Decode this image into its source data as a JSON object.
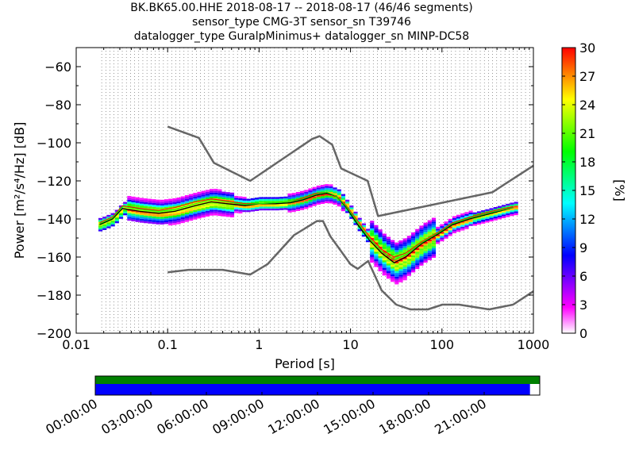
{
  "title": {
    "line1": "BK.BK65.00.HHE   2018-08-17 -- 2018-08-17  (46/46 segments)",
    "line2": "sensor_type CMG-3T sensor_sn T39746",
    "line3": "datalogger_type GuralpMinimus+ datalogger_sn MINP-DC58"
  },
  "chart_data": [
    {
      "type": "heatmap",
      "subtype": "probabilistic-power-spectral-density",
      "xlabel": "Period [s]",
      "ylabel": "Power [m²/s⁴/Hz] [dB]",
      "xscale": "log",
      "xlim": [
        0.01,
        1000
      ],
      "ylim": [
        -200,
        -50
      ],
      "x_ticks": [
        0.01,
        0.1,
        1,
        10,
        100,
        1000
      ],
      "x_tick_labels": [
        "0.01",
        "0.1",
        "1",
        "10",
        "100",
        "1000"
      ],
      "y_ticks": [
        -200,
        -180,
        -160,
        -140,
        -120,
        -100,
        -80,
        -60
      ],
      "y_tick_labels": [
        "−200",
        "−180",
        "−160",
        "−140",
        "−120",
        "−100",
        "−80",
        "−60"
      ],
      "grid": "dotted vertical lines at period bins",
      "colormap": [
        "#ffffff",
        "#ff00ff",
        "#8000ff",
        "#0000ff",
        "#0080ff",
        "#00ffff",
        "#00ff80",
        "#00ff00",
        "#80ff00",
        "#ffff00",
        "#ff8000",
        "#ff0000"
      ],
      "colorbar": {
        "label": "[%]",
        "min": 0,
        "max": 30,
        "ticks": [
          0,
          3,
          6,
          9,
          12,
          15,
          18,
          21,
          24,
          27,
          30
        ],
        "tick_labels": [
          "0",
          "3",
          "6",
          "9",
          "12",
          "15",
          "18",
          "21",
          "24",
          "27",
          "30"
        ]
      },
      "series": [
        {
          "role": "new-high-noise-model",
          "color": "#666666",
          "x": [
            0.1,
            0.22,
            0.32,
            0.8,
            3.8,
            4.6,
            6.3,
            7.9,
            15.4,
            20,
            354.8,
            1000
          ],
          "y": [
            -91.5,
            -97.4,
            -110.5,
            -120,
            -98,
            -96.5,
            -101,
            -113.5,
            -120,
            -138.5,
            -126,
            -112
          ]
        },
        {
          "role": "new-low-noise-model",
          "color": "#666666",
          "x": [
            0.1,
            0.17,
            0.4,
            0.8,
            1.24,
            2.4,
            4.3,
            5,
            6,
            10,
            12,
            15.6,
            21.9,
            31.6,
            45,
            70,
            101,
            154,
            328,
            600,
            1000
          ],
          "y": [
            -168,
            -166.7,
            -166.7,
            -169.2,
            -163.7,
            -148.6,
            -141.1,
            -141.1,
            -149,
            -163.8,
            -166.2,
            -162.1,
            -177.5,
            -185,
            -187.5,
            -187.5,
            -185,
            -185,
            -187.5,
            -185,
            -178
          ]
        },
        {
          "role": "mode",
          "color": "#000000",
          "x": [
            0.018,
            0.025,
            0.032,
            0.05,
            0.08,
            0.12,
            0.2,
            0.3,
            0.45,
            0.7,
            1,
            1.5,
            2.2,
            3,
            4.2,
            5.5,
            7,
            9,
            12,
            16,
            22,
            30,
            40,
            60,
            90,
            130,
            200,
            350,
            600
          ],
          "y": [
            -143,
            -140,
            -134.5,
            -136,
            -137,
            -136,
            -133,
            -131,
            -132,
            -133,
            -132,
            -132,
            -131.5,
            -130,
            -127.5,
            -126.5,
            -128,
            -134,
            -143,
            -151,
            -158,
            -163,
            -160,
            -153,
            -148,
            -143,
            -140,
            -137,
            -134
          ]
        },
        {
          "role": "mean",
          "color": "#ff0000",
          "x": [
            0.018,
            0.025,
            0.032,
            0.05,
            0.08,
            0.12,
            0.2,
            0.3,
            0.45,
            0.7,
            1,
            1.5,
            2.2,
            3,
            4.2,
            5.5,
            7,
            9,
            12,
            16,
            22,
            30,
            40,
            60,
            90,
            130,
            200,
            350,
            600
          ],
          "y": [
            -142,
            -139,
            -133,
            -134.5,
            -135.5,
            -134,
            -131,
            -129.5,
            -130.5,
            -132,
            -132,
            -131.5,
            -131,
            -129,
            -126.5,
            -126,
            -128,
            -133,
            -141,
            -149,
            -156,
            -160,
            -158,
            -152,
            -147,
            -142,
            -139,
            -136,
            -133.5
          ]
        },
        {
          "role": "median",
          "color": "#00ff00",
          "x": [
            0.018,
            0.025,
            0.032,
            0.05,
            0.08,
            0.12,
            0.2,
            0.3,
            0.45,
            0.7,
            1,
            1.5,
            2.2,
            3,
            4.2,
            5.5,
            7,
            9,
            12,
            16,
            22,
            30,
            40,
            60,
            90,
            130,
            200,
            350,
            600
          ],
          "y": [
            -142.5,
            -139.5,
            -133.5,
            -135,
            -136,
            -135,
            -132,
            -130,
            -131,
            -132.5,
            -132,
            -131.5,
            -131,
            -129.5,
            -127,
            -126,
            -128,
            -133.5,
            -142,
            -150,
            -157,
            -161.5,
            -159,
            -152.5,
            -147.5,
            -142.5,
            -139.5,
            -136.5,
            -134
          ]
        }
      ]
    },
    {
      "type": "timeline",
      "role": "data-coverage",
      "x_tick_labels": [
        "00:00:00",
        "03:00:00",
        "06:00:00",
        "09:00:00",
        "12:00:00",
        "15:00:00",
        "18:00:00",
        "21:00:00"
      ],
      "top_row": {
        "color": "#008000",
        "start_fraction": 0,
        "end_fraction": 1
      },
      "bottom_row": {
        "color": "#0000ff",
        "start_fraction": 0,
        "end_fraction": 0.978
      }
    }
  ]
}
